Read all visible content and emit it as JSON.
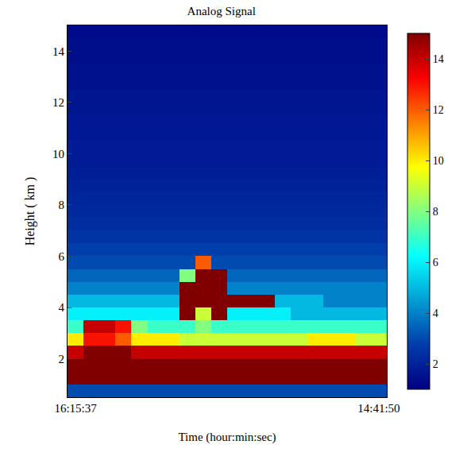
{
  "chart_data": {
    "type": "heatmap",
    "title": "Analog Signal",
    "x_label": "Time (hour:min:sec)",
    "y_label": "Height ( km )",
    "color": "Jet",
    "categories": [
      "16:15:37",
      null,
      null,
      null,
      null,
      null,
      null,
      null,
      null,
      null,
      null,
      null,
      null,
      null,
      null,
      null,
      null,
      null,
      null,
      "14:41:50"
    ],
    "y": [
      0.75,
      1.25,
      1.75,
      2.25,
      2.75,
      3.25,
      3.75,
      4.25,
      4.75,
      5.25,
      5.75,
      6.25,
      6.75,
      7.25,
      7.75,
      8.25,
      8.75,
      9.25,
      9.75,
      10.25,
      10.75,
      11.25,
      11.75,
      12.25,
      12.75,
      13.25,
      13.75,
      14.25,
      14.75
    ],
    "z": [
      [
        3,
        3,
        3,
        3,
        3,
        3,
        3,
        3,
        3,
        3,
        3,
        3,
        3,
        3,
        3,
        3,
        3,
        3,
        3,
        3
      ],
      [
        15,
        15,
        15,
        15,
        15,
        15,
        15,
        15,
        15,
        15,
        15,
        15,
        15,
        15,
        15,
        15,
        15,
        15,
        15,
        15
      ],
      [
        15,
        15,
        15,
        15,
        15,
        15,
        15,
        15,
        15,
        15,
        15,
        15,
        15,
        15,
        15,
        15,
        15,
        15,
        15,
        15
      ],
      [
        14,
        15,
        15,
        15,
        14,
        14,
        14,
        14,
        14,
        14,
        14,
        14,
        14,
        14,
        14,
        14,
        14,
        14,
        14,
        14
      ],
      [
        10,
        13,
        13,
        12,
        10,
        10,
        10,
        9,
        9,
        9,
        9,
        9,
        9,
        9,
        9,
        10,
        10,
        10,
        9,
        9
      ],
      [
        7,
        14,
        14,
        13,
        8,
        7,
        7,
        7,
        8,
        7,
        7,
        7,
        7,
        7,
        7,
        7,
        7,
        7,
        7,
        7
      ],
      [
        6,
        6,
        6,
        6,
        6,
        6,
        6,
        15,
        9,
        15,
        6,
        6,
        6,
        6,
        5,
        5,
        5,
        5,
        5,
        5
      ],
      [
        5,
        5,
        5,
        5,
        5,
        5,
        5,
        15,
        15,
        15,
        15,
        15,
        15,
        5,
        5,
        5,
        4,
        4,
        4,
        4
      ],
      [
        4,
        4,
        4,
        4,
        4,
        4,
        4,
        15,
        15,
        15,
        4,
        4,
        4,
        4,
        4,
        4,
        4,
        4,
        4,
        4
      ],
      [
        3.5,
        3.5,
        3.5,
        3.5,
        3.5,
        3.5,
        3.5,
        8,
        15,
        15,
        3.5,
        3.5,
        3.5,
        3.5,
        3.5,
        3.5,
        3.5,
        3.5,
        3.5,
        3.5
      ],
      [
        3,
        3,
        3,
        3,
        3,
        3,
        3,
        3,
        12,
        3,
        3,
        3,
        3,
        3,
        3,
        3,
        3,
        3,
        3,
        3
      ],
      [
        2.8,
        2.8,
        2.8,
        2.8,
        2.8,
        2.8,
        2.8,
        2.8,
        2.8,
        2.8,
        2.8,
        2.8,
        2.8,
        2.8,
        2.8,
        2.8,
        2.8,
        2.8,
        2.8,
        2.8
      ],
      [
        2.5,
        2.5,
        2.5,
        2.5,
        2.5,
        2.5,
        2.5,
        2.5,
        2.5,
        2.5,
        2.5,
        2.5,
        2.5,
        2.5,
        2.5,
        2.5,
        2.5,
        2.5,
        2.5,
        2.5
      ],
      [
        2.3,
        2.3,
        2.3,
        2.3,
        2.3,
        2.3,
        2.3,
        2.3,
        2.3,
        2.3,
        2.3,
        2.3,
        2.3,
        2.3,
        2.3,
        2.3,
        2.3,
        2.3,
        2.3,
        2.3
      ],
      [
        2.2,
        2.2,
        2.2,
        2.2,
        2.2,
        2.2,
        2.2,
        2.2,
        2.2,
        2.2,
        2.2,
        2.2,
        2.2,
        2.2,
        2.2,
        2.2,
        2.2,
        2.2,
        2.2,
        2.2
      ],
      [
        2.1,
        2.1,
        2.1,
        2.1,
        2.1,
        2.1,
        2.1,
        2.1,
        2.1,
        2.1,
        2.1,
        2.1,
        2.1,
        2.1,
        2.1,
        2.1,
        2.1,
        2.1,
        2.1,
        2.1
      ],
      [
        2,
        2,
        2,
        2,
        2,
        2,
        2,
        2,
        2,
        2,
        2,
        2,
        2,
        2,
        2,
        2,
        2,
        2,
        2,
        2
      ],
      [
        1.9,
        1.9,
        1.9,
        1.9,
        1.9,
        1.9,
        1.9,
        1.9,
        1.9,
        1.9,
        1.9,
        1.9,
        1.9,
        1.9,
        1.9,
        1.9,
        1.9,
        1.9,
        1.9,
        1.9
      ],
      [
        1.8,
        1.8,
        1.8,
        1.8,
        1.8,
        1.8,
        1.8,
        1.8,
        1.8,
        1.8,
        1.8,
        1.8,
        1.8,
        1.8,
        1.8,
        1.8,
        1.8,
        1.8,
        1.8,
        1.8
      ],
      [
        1.8,
        1.8,
        1.8,
        1.8,
        1.8,
        1.8,
        1.8,
        1.8,
        1.8,
        1.8,
        1.8,
        1.8,
        1.8,
        1.8,
        1.8,
        1.8,
        1.8,
        1.8,
        1.8,
        1.8
      ],
      [
        1.7,
        1.7,
        1.7,
        1.7,
        1.7,
        1.7,
        1.7,
        1.7,
        1.7,
        1.7,
        1.7,
        1.7,
        1.7,
        1.7,
        1.7,
        1.7,
        1.7,
        1.7,
        1.7,
        1.7
      ],
      [
        1.7,
        1.7,
        1.7,
        1.7,
        1.7,
        1.7,
        1.7,
        1.7,
        1.7,
        1.7,
        1.7,
        1.7,
        1.7,
        1.7,
        1.7,
        1.7,
        1.7,
        1.7,
        1.7,
        1.7
      ],
      [
        1.6,
        1.6,
        1.6,
        1.6,
        1.6,
        1.6,
        1.6,
        1.6,
        1.6,
        1.6,
        1.6,
        1.6,
        1.6,
        1.6,
        1.6,
        1.6,
        1.6,
        1.6,
        1.6,
        1.6
      ],
      [
        1.6,
        1.6,
        1.6,
        1.6,
        1.6,
        1.6,
        1.6,
        1.6,
        1.6,
        1.6,
        1.6,
        1.6,
        1.6,
        1.6,
        1.6,
        1.6,
        1.6,
        1.6,
        1.6,
        1.6
      ],
      [
        1.5,
        1.5,
        1.5,
        1.5,
        1.5,
        1.5,
        1.5,
        1.5,
        1.5,
        1.5,
        1.5,
        1.5,
        1.5,
        1.5,
        1.5,
        1.5,
        1.5,
        1.5,
        1.5,
        1.5
      ],
      [
        1.5,
        1.5,
        1.5,
        1.5,
        1.5,
        1.5,
        1.5,
        1.5,
        1.5,
        1.5,
        1.5,
        1.5,
        1.5,
        1.5,
        1.5,
        1.5,
        1.5,
        1.5,
        1.5,
        1.5
      ],
      [
        1.4,
        1.4,
        1.4,
        1.4,
        1.4,
        1.4,
        1.4,
        1.4,
        1.4,
        1.4,
        1.4,
        1.4,
        1.4,
        1.4,
        1.4,
        1.4,
        1.4,
        1.4,
        1.4,
        1.4
      ],
      [
        1.4,
        1.4,
        1.4,
        1.4,
        1.4,
        1.4,
        1.4,
        1.4,
        1.4,
        1.4,
        1.4,
        1.4,
        1.4,
        1.4,
        1.4,
        1.4,
        1.4,
        1.4,
        1.4,
        1.4
      ],
      [
        1.3,
        1.3,
        1.3,
        1.3,
        1.3,
        1.3,
        1.3,
        1.3,
        1.3,
        1.3,
        1.3,
        1.3,
        1.3,
        1.3,
        1.3,
        1.3,
        1.3,
        1.3,
        1.3,
        1.3
      ]
    ],
    "ylim": [
      0.5,
      15
    ],
    "yticks": [
      2,
      4,
      6,
      8,
      10,
      12,
      14
    ],
    "zlim": [
      1,
      15
    ],
    "zticks": [
      2,
      4,
      6,
      8,
      10,
      12,
      14
    ]
  }
}
